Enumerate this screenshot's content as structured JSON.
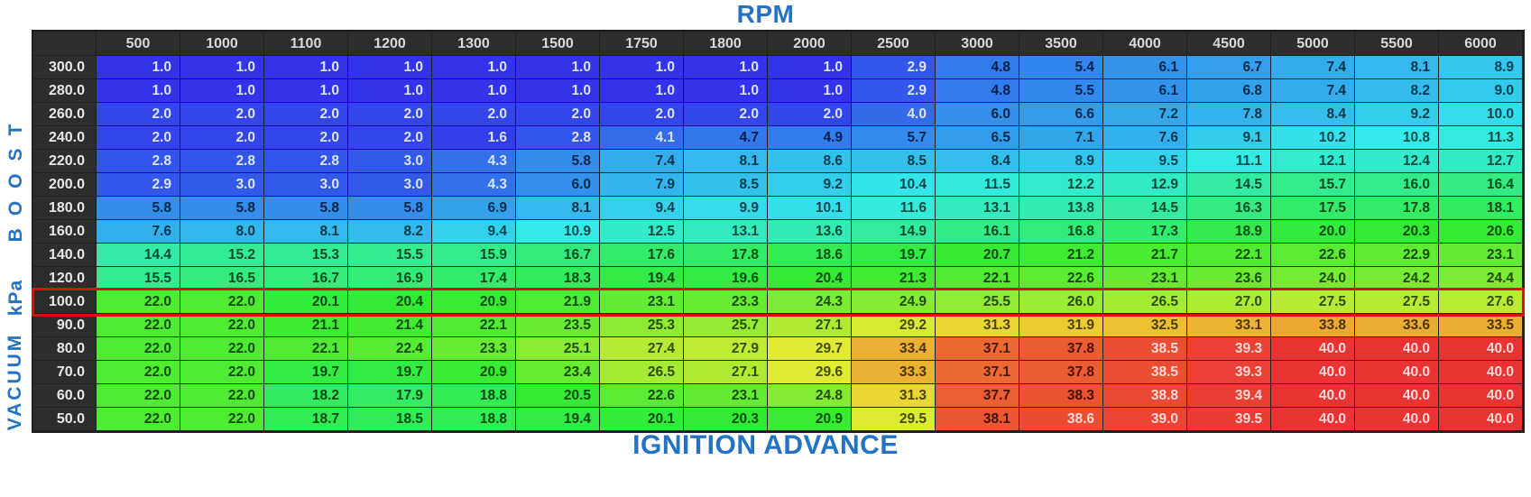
{
  "titles": {
    "top": "RPM",
    "bottom": "IGNITION ADVANCE"
  },
  "side_labels": {
    "boost": "BOOST",
    "unit": "kPa",
    "vacuum": "VACUUM"
  },
  "colors": {
    "accent_blue": "#2472c4",
    "highlight_red": "#e20a0a",
    "header_bg": "#2d2d2d",
    "header_text": "#d9d9d9",
    "grid_line": "#1f1f1f"
  },
  "highlight": {
    "row_label": "100.0"
  },
  "chart_data": {
    "type": "heatmap",
    "title": "IGNITION ADVANCE",
    "x_axis_label": "RPM",
    "y_axis_label": "VACUUM kPa BOOST",
    "columns": [
      500,
      1000,
      1100,
      1200,
      1300,
      1500,
      1750,
      1800,
      2000,
      2500,
      3000,
      3500,
      4000,
      4500,
      5000,
      5500,
      6000
    ],
    "row_labels": [
      "300.0",
      "280.0",
      "260.0",
      "240.0",
      "220.0",
      "200.0",
      "180.0",
      "160.0",
      "140.0",
      "120.0",
      "100.0",
      "90.0",
      "80.0",
      "70.0",
      "60.0",
      "50.0"
    ],
    "values": [
      [
        1.0,
        1.0,
        1.0,
        1.0,
        1.0,
        1.0,
        1.0,
        1.0,
        1.0,
        2.9,
        4.8,
        5.4,
        6.1,
        6.7,
        7.4,
        8.1,
        8.9
      ],
      [
        1.0,
        1.0,
        1.0,
        1.0,
        1.0,
        1.0,
        1.0,
        1.0,
        1.0,
        2.9,
        4.8,
        5.5,
        6.1,
        6.8,
        7.4,
        8.2,
        9.0
      ],
      [
        2.0,
        2.0,
        2.0,
        2.0,
        2.0,
        2.0,
        2.0,
        2.0,
        2.0,
        4.0,
        6.0,
        6.6,
        7.2,
        7.8,
        8.4,
        9.2,
        10.0
      ],
      [
        2.0,
        2.0,
        2.0,
        2.0,
        1.6,
        2.8,
        4.1,
        4.7,
        4.9,
        5.7,
        6.5,
        7.1,
        7.6,
        9.1,
        10.2,
        10.8,
        11.3
      ],
      [
        2.8,
        2.8,
        2.8,
        3.0,
        4.3,
        5.8,
        7.4,
        8.1,
        8.6,
        8.5,
        8.4,
        8.9,
        9.5,
        11.1,
        12.1,
        12.4,
        12.7
      ],
      [
        2.9,
        3.0,
        3.0,
        3.0,
        4.3,
        6.0,
        7.9,
        8.5,
        9.2,
        10.4,
        11.5,
        12.2,
        12.9,
        14.5,
        15.7,
        16.0,
        16.4
      ],
      [
        5.8,
        5.8,
        5.8,
        5.8,
        6.9,
        8.1,
        9.4,
        9.9,
        10.1,
        11.6,
        13.1,
        13.8,
        14.5,
        16.3,
        17.5,
        17.8,
        18.1
      ],
      [
        7.6,
        8.0,
        8.1,
        8.2,
        9.4,
        10.9,
        12.5,
        13.1,
        13.6,
        14.9,
        16.1,
        16.8,
        17.3,
        18.9,
        20.0,
        20.3,
        20.6
      ],
      [
        14.4,
        15.2,
        15.3,
        15.5,
        15.9,
        16.7,
        17.6,
        17.8,
        18.6,
        19.7,
        20.7,
        21.2,
        21.7,
        22.1,
        22.6,
        22.9,
        23.1
      ],
      [
        15.5,
        16.5,
        16.7,
        16.9,
        17.4,
        18.3,
        19.4,
        19.6,
        20.4,
        21.3,
        22.1,
        22.6,
        23.1,
        23.6,
        24.0,
        24.2,
        24.4
      ],
      [
        22.0,
        22.0,
        20.1,
        20.4,
        20.9,
        21.9,
        23.1,
        23.3,
        24.3,
        24.9,
        25.5,
        26.0,
        26.5,
        27.0,
        27.5,
        27.5,
        27.6
      ],
      [
        22.0,
        22.0,
        21.1,
        21.4,
        22.1,
        23.5,
        25.3,
        25.7,
        27.1,
        29.2,
        31.3,
        31.9,
        32.5,
        33.1,
        33.8,
        33.6,
        33.5
      ],
      [
        22.0,
        22.0,
        22.1,
        22.4,
        23.3,
        25.1,
        27.4,
        27.9,
        29.7,
        33.4,
        37.1,
        37.8,
        38.5,
        39.3,
        40.0,
        40.0,
        40.0
      ],
      [
        22.0,
        22.0,
        19.7,
        19.7,
        20.9,
        23.4,
        26.5,
        27.1,
        29.6,
        33.3,
        37.1,
        37.8,
        38.5,
        39.3,
        40.0,
        40.0,
        40.0
      ],
      [
        22.0,
        22.0,
        18.2,
        17.9,
        18.8,
        20.5,
        22.6,
        23.1,
        24.8,
        31.3,
        37.7,
        38.3,
        38.8,
        39.4,
        40.0,
        40.0,
        40.0
      ],
      [
        22.0,
        22.0,
        18.7,
        18.5,
        18.8,
        19.4,
        20.1,
        20.3,
        20.9,
        29.5,
        38.1,
        38.6,
        39.0,
        39.5,
        40.0,
        40.0,
        40.0
      ]
    ],
    "color_scale": {
      "min": 1.0,
      "max": 40.0,
      "low_color_hue": "blue",
      "high_color_hue": "red"
    },
    "highlighted_row_label": "100.0",
    "grid": true,
    "value_format": "0.0"
  }
}
